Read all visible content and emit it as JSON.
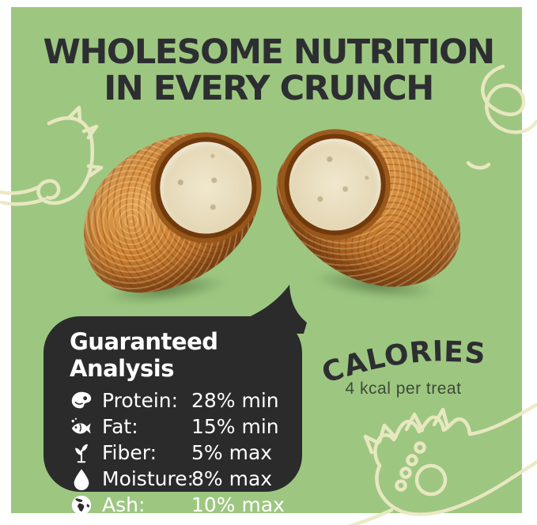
{
  "headline": {
    "line1": "WHOLESOME NUTRITION",
    "line2": "IN EVERY CRUNCH"
  },
  "analysis": {
    "title": "Guaranteed Analysis",
    "rows": [
      {
        "icon": "meat-icon",
        "label": "Protein:",
        "value": "28% min"
      },
      {
        "icon": "fish-icon",
        "label": "Fat:",
        "value": "15% min"
      },
      {
        "icon": "plant-icon",
        "label": "Fiber:",
        "value": "5% max"
      },
      {
        "icon": "droplet-icon",
        "label": "Moisture:",
        "value": "8% max"
      },
      {
        "icon": "globe-icon",
        "label": "Ash:",
        "value": "10% max"
      }
    ]
  },
  "calories": {
    "title": "CALORIES",
    "subtitle": "4 kcal per treat"
  },
  "illustrations": {
    "photo": "two-treat-halves-with-creamy-filling",
    "decor": [
      "fish-doodle",
      "curl-doodle",
      "paw-doodle"
    ]
  },
  "colors": {
    "panel_green": "#9dc781",
    "ink_dark": "#2d2e31",
    "bubble_dark": "#2b2b2b",
    "text_white": "#ffffff",
    "doodle_cream": "#ece9c4",
    "subtitle_olive": "#3d4937"
  }
}
